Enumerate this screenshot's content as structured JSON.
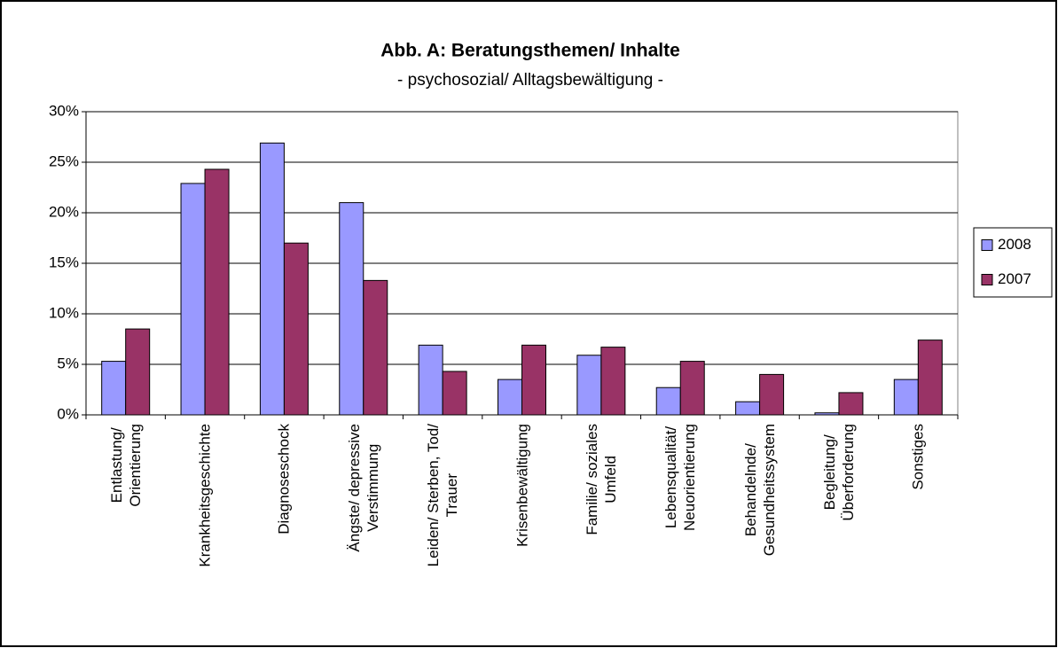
{
  "chart_data": {
    "type": "bar",
    "title": "Abb. A: Beratungsthemen/ Inhalte",
    "subtitle": "- psychosozial/ Alltagsbewältigung -",
    "categories": [
      "Entlastung/\nOrientierung",
      "Krankheitsgeschichte",
      "Diagnoseschock",
      "Ängste/ depressive\nVerstimmung",
      "Leiden/ Sterben, Tod/\nTrauer",
      "Krisenbewältigung",
      "Familie/ soziales\nUmfeld",
      "Lebensqualität/\nNeuorientierung",
      "Behandelnde/\nGesundheitssystem",
      "Begleitung/\nÜberforderung",
      "Sonstiges"
    ],
    "series": [
      {
        "name": "2008",
        "color": "#9999ff",
        "values": [
          5.3,
          22.9,
          26.9,
          21.0,
          6.9,
          3.5,
          5.9,
          2.7,
          1.3,
          0.2,
          3.5
        ]
      },
      {
        "name": "2007",
        "color": "#993366",
        "values": [
          8.5,
          24.3,
          17.0,
          13.3,
          4.3,
          6.9,
          6.7,
          5.3,
          4.0,
          2.2,
          7.4
        ]
      }
    ],
    "ylim": [
      0,
      30
    ],
    "yticks": [
      {
        "value": 0,
        "label": "0%"
      },
      {
        "value": 5,
        "label": "5%"
      },
      {
        "value": 10,
        "label": "10%"
      },
      {
        "value": 15,
        "label": "15%"
      },
      {
        "value": 20,
        "label": "20%"
      },
      {
        "value": 25,
        "label": "25%"
      },
      {
        "value": 30,
        "label": "30%"
      }
    ],
    "grid": true,
    "legend": "right"
  }
}
